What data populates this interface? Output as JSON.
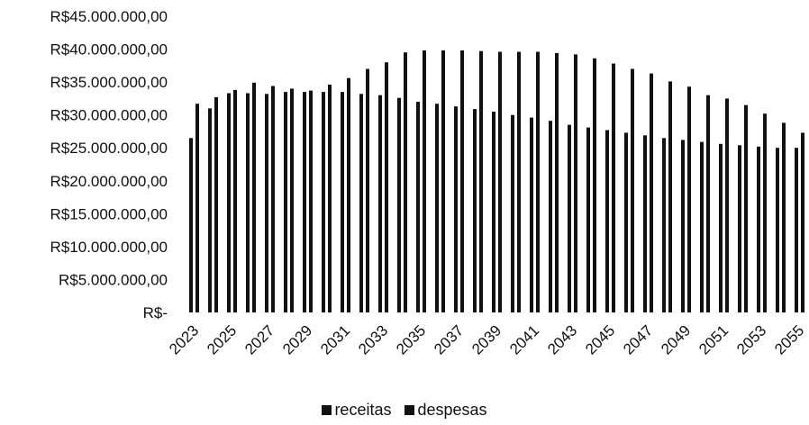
{
  "chart_data": {
    "type": "bar",
    "title": "",
    "xlabel": "",
    "ylabel": "",
    "ylim": [
      0,
      45000000
    ],
    "ytick_values": [
      0,
      5000000,
      10000000,
      15000000,
      20000000,
      25000000,
      30000000,
      35000000,
      40000000,
      45000000
    ],
    "ytick_labels": [
      "R$-",
      "R$5.000.000,00",
      "R$10.000.000,00",
      "R$15.000.000,00",
      "R$20.000.000,00",
      "R$25.000.000,00",
      "R$30.000.000,00",
      "R$35.000.000,00",
      "R$40.000.000,00",
      "R$45.000.000,00"
    ],
    "categories": [
      "2023",
      "2024",
      "2025",
      "2026",
      "2027",
      "2028",
      "2029",
      "2030",
      "2031",
      "2032",
      "2033",
      "2034",
      "2035",
      "2036",
      "2037",
      "2038",
      "2039",
      "2040",
      "2041",
      "2042",
      "2043",
      "2044",
      "2045",
      "2046",
      "2047",
      "2048",
      "2049",
      "2050",
      "2051",
      "2052",
      "2053",
      "2054",
      "2055"
    ],
    "xtick_labels": [
      "2023",
      "2025",
      "2027",
      "2029",
      "2031",
      "2033",
      "2035",
      "2037",
      "2039",
      "2041",
      "2043",
      "2045",
      "2047",
      "2049",
      "2051",
      "2053",
      "2055"
    ],
    "series": [
      {
        "name": "receitas",
        "color": "#111111",
        "values": [
          26500000,
          31000000,
          33300000,
          33300000,
          33200000,
          33500000,
          33500000,
          33500000,
          33500000,
          33200000,
          33000000,
          32600000,
          32000000,
          31700000,
          31300000,
          30900000,
          30500000,
          30000000,
          29600000,
          29100000,
          28500000,
          28100000,
          27700000,
          27300000,
          26900000,
          26500000,
          26200000,
          25900000,
          25600000,
          25400000,
          25200000,
          25000000,
          25000000
        ]
      },
      {
        "name": "despesas",
        "color": "#111111",
        "values": [
          31700000,
          32700000,
          33800000,
          34900000,
          34400000,
          34000000,
          33700000,
          34600000,
          35600000,
          37000000,
          38000000,
          39500000,
          39800000,
          39800000,
          39800000,
          39700000,
          39600000,
          39600000,
          39600000,
          39400000,
          39200000,
          38600000,
          37800000,
          37000000,
          36300000,
          35100000,
          34300000,
          33000000,
          32500000,
          31500000,
          30200000,
          28800000,
          27300000
        ]
      }
    ],
    "grid": false,
    "legend_position": "bottom",
    "legend": {
      "receitas": "receitas",
      "despesas": "despesas"
    }
  }
}
